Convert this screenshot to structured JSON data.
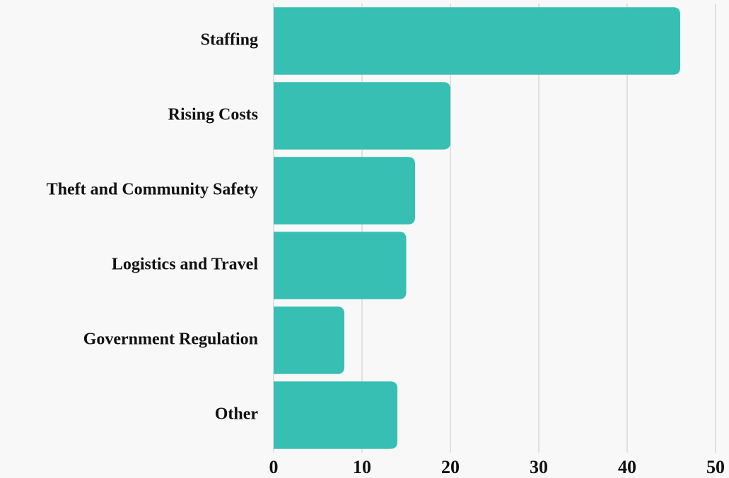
{
  "chart_data": {
    "type": "hbar",
    "categories": [
      "Staffing",
      "Rising Costs",
      "Theft and Community Safety",
      "Logistics and Travel",
      "Government Regulation",
      "Other"
    ],
    "values": [
      46,
      20,
      16,
      15,
      8,
      14
    ],
    "color": "#37bfb3",
    "xlim": [
      0,
      50
    ],
    "xticks": [
      0,
      10,
      20,
      30,
      40,
      50
    ],
    "grid": true
  }
}
